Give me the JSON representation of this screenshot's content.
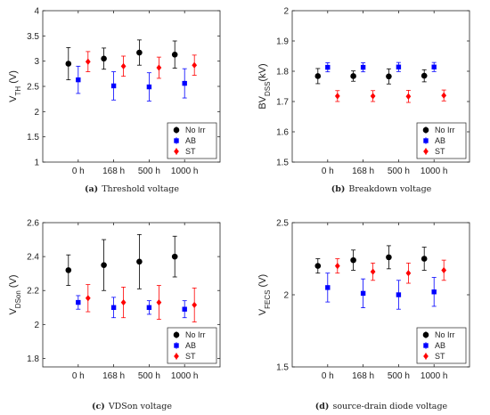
{
  "chart_data": [
    {
      "type": "scatter",
      "panel": "a",
      "caption_letter": "(a)",
      "caption": "Threshold voltage",
      "ylabel": "V",
      "ylabel_sub": "TH",
      "ylabel_unit": " (V)",
      "categories": [
        "0 h",
        "168 h",
        "500 h",
        "1000 h"
      ],
      "ylim": [
        1,
        4
      ],
      "yticks": [
        1,
        1.5,
        2,
        2.5,
        3,
        3.5,
        4
      ],
      "ytick_labels": [
        "1",
        "1.5",
        "2",
        "2.5",
        "3",
        "3.5",
        "4"
      ],
      "grid": false,
      "legend_position": "bottom-right",
      "series": [
        {
          "name": "No Irr",
          "color": "#000000",
          "marker": "circle",
          "values": [
            2.95,
            3.05,
            3.17,
            3.13
          ],
          "err": [
            0.32,
            0.21,
            0.25,
            0.27
          ]
        },
        {
          "name": "AB",
          "color": "#0000ff",
          "marker": "square",
          "values": [
            2.63,
            2.51,
            2.49,
            2.56
          ],
          "err": [
            0.27,
            0.28,
            0.28,
            0.29
          ]
        },
        {
          "name": "ST",
          "color": "#ff0000",
          "marker": "diamond",
          "values": [
            2.99,
            2.9,
            2.87,
            2.92
          ],
          "err": [
            0.2,
            0.2,
            0.21,
            0.2
          ]
        }
      ]
    },
    {
      "type": "scatter",
      "panel": "b",
      "caption_letter": "(b)",
      "caption": "Breakdown voltage",
      "ylabel": "BV",
      "ylabel_sub": "DSS",
      "ylabel_unit": "(kV)",
      "categories": [
        "0 h",
        "168 h",
        "500 h",
        "1000 h"
      ],
      "ylim": [
        1.5,
        2
      ],
      "yticks": [
        1.5,
        1.6,
        1.7,
        1.8,
        1.9,
        2
      ],
      "ytick_labels": [
        "1.5",
        "1.6",
        "1.7",
        "1.8",
        "1.9",
        "2"
      ],
      "grid": false,
      "legend_position": "bottom-right",
      "series": [
        {
          "name": "No Irr",
          "color": "#000000",
          "marker": "circle",
          "values": [
            1.784,
            1.784,
            1.783,
            1.785
          ],
          "err": [
            0.025,
            0.017,
            0.025,
            0.02
          ]
        },
        {
          "name": "AB",
          "color": "#0000ff",
          "marker": "square",
          "values": [
            1.813,
            1.813,
            1.814,
            1.814
          ],
          "err": [
            0.015,
            0.015,
            0.015,
            0.015
          ]
        },
        {
          "name": "ST",
          "color": "#ff0000",
          "marker": "diamond",
          "values": [
            1.718,
            1.718,
            1.717,
            1.72
          ],
          "err": [
            0.018,
            0.018,
            0.02,
            0.018
          ]
        }
      ]
    },
    {
      "type": "scatter",
      "panel": "c",
      "caption_letter": "(c)",
      "caption": "VDSon voltage",
      "ylabel": "V",
      "ylabel_sub": "DSon",
      "ylabel_unit": " (V)",
      "categories": [
        "0 h",
        "168 h",
        "500 h",
        "1000 h"
      ],
      "ylim": [
        1.75,
        2.6
      ],
      "yticks": [
        1.8,
        2,
        2.2,
        2.4,
        2.6
      ],
      "ytick_labels": [
        "1.8",
        "2",
        "2.2",
        "2.4",
        "2.6"
      ],
      "grid": false,
      "legend_position": "bottom-right",
      "series": [
        {
          "name": "No Irr",
          "color": "#000000",
          "marker": "circle",
          "values": [
            2.32,
            2.35,
            2.37,
            2.4
          ],
          "err": [
            0.09,
            0.15,
            0.16,
            0.12
          ]
        },
        {
          "name": "AB",
          "color": "#0000ff",
          "marker": "square",
          "values": [
            2.13,
            2.1,
            2.1,
            2.09
          ],
          "err": [
            0.04,
            0.06,
            0.04,
            0.05
          ]
        },
        {
          "name": "ST",
          "color": "#ff0000",
          "marker": "diamond",
          "values": [
            2.155,
            2.13,
            2.13,
            2.115
          ],
          "err": [
            0.08,
            0.09,
            0.1,
            0.1
          ]
        }
      ]
    },
    {
      "type": "scatter",
      "panel": "d",
      "caption_letter": "(d)",
      "caption": "source-drain diode voltage",
      "ylabel": "V",
      "ylabel_sub": "FECS",
      "ylabel_unit": " (V)",
      "categories": [
        "0 h",
        "168 h",
        "500 h",
        "1000 h"
      ],
      "ylim": [
        1.5,
        2.5
      ],
      "yticks": [
        1.5,
        2,
        2.5
      ],
      "ytick_labels": [
        "1.5",
        "2",
        "2.5"
      ],
      "grid": false,
      "legend_position": "bottom-right",
      "series": [
        {
          "name": "No Irr",
          "color": "#000000",
          "marker": "circle",
          "values": [
            2.2,
            2.24,
            2.26,
            2.25
          ],
          "err": [
            0.05,
            0.07,
            0.08,
            0.08
          ]
        },
        {
          "name": "AB",
          "color": "#0000ff",
          "marker": "square",
          "values": [
            2.05,
            2.01,
            2.0,
            2.02
          ],
          "err": [
            0.1,
            0.1,
            0.1,
            0.1
          ]
        },
        {
          "name": "ST",
          "color": "#ff0000",
          "marker": "diamond",
          "values": [
            2.2,
            2.16,
            2.15,
            2.17
          ],
          "err": [
            0.05,
            0.06,
            0.07,
            0.07
          ]
        }
      ]
    }
  ]
}
